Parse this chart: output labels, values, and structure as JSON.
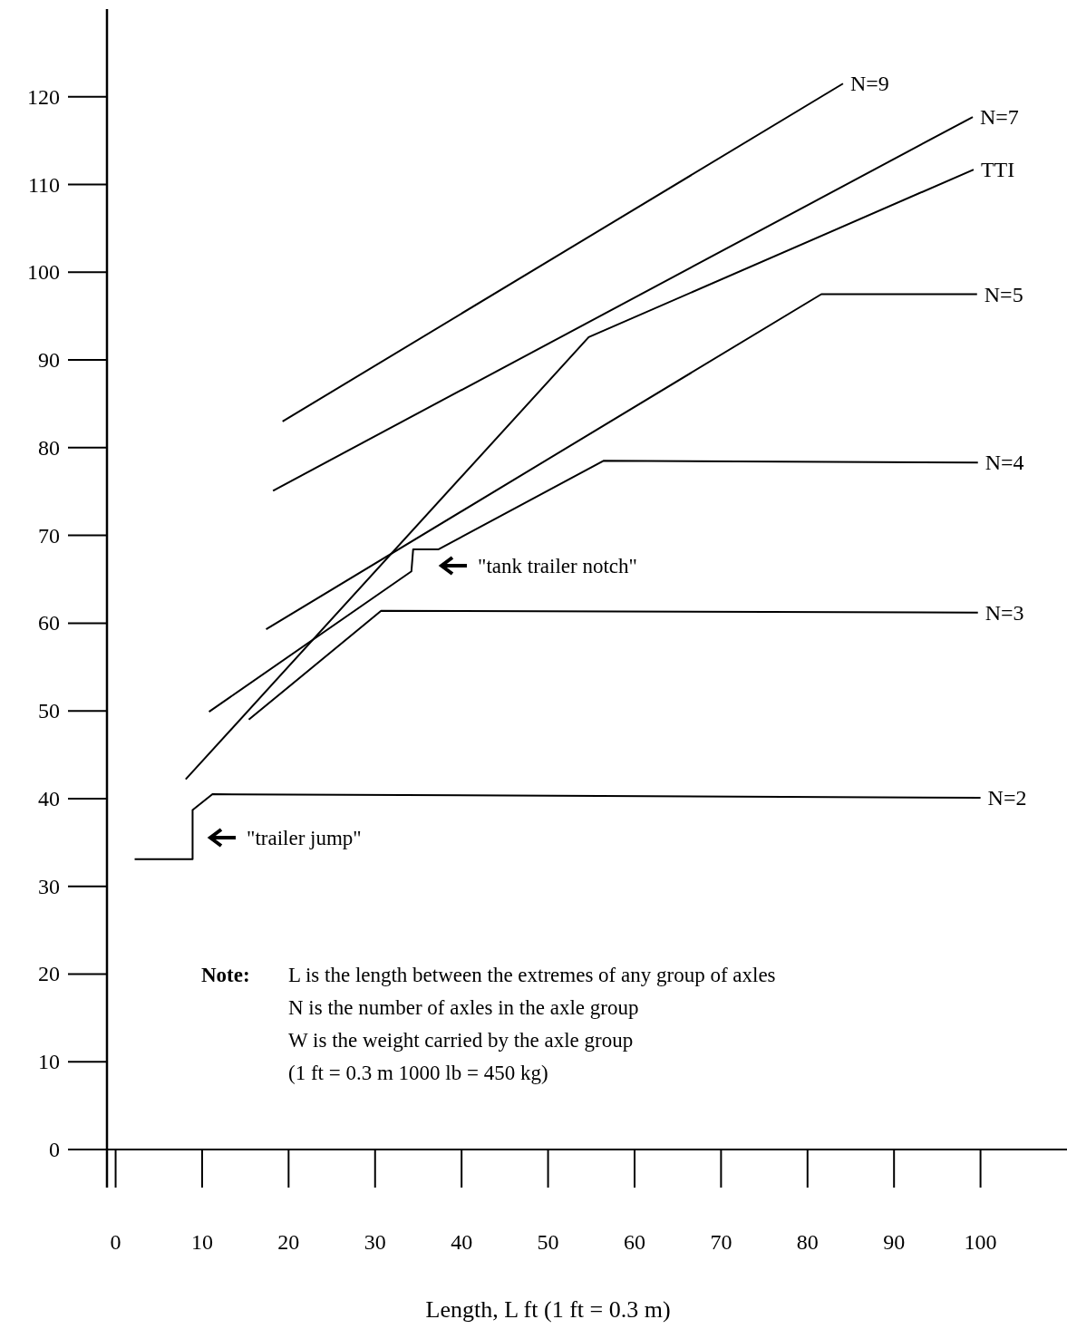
{
  "chart_data": {
    "type": "line",
    "xlabel": "Length, L ft (1 ft = 0.3 m)",
    "xlim": [
      -1,
      110
    ],
    "ylim": [
      0,
      130
    ],
    "xticks": [
      0,
      10,
      20,
      30,
      40,
      50,
      60,
      70,
      80,
      90,
      100
    ],
    "yticks": [
      0,
      10,
      20,
      30,
      40,
      50,
      60,
      70,
      80,
      90,
      100,
      110,
      120
    ],
    "grid": false,
    "marker": "none",
    "line_style": "solid",
    "series": [
      {
        "name": "N=9",
        "color": "#000000",
        "x": [
          19.3,
          84.1
        ],
        "values": [
          83,
          121.5
        ]
      },
      {
        "name": "N=7",
        "color": "#000000",
        "x": [
          18.2,
          99.1
        ],
        "values": [
          75.1,
          117.7
        ]
      },
      {
        "name": "TTI",
        "color": "#000000",
        "x": [
          8.1,
          54.7,
          99.2
        ],
        "values": [
          42.2,
          92.6,
          111.7
        ]
      },
      {
        "name": "N=5",
        "color": "#000000",
        "x": [
          17.4,
          81.6,
          99.6
        ],
        "values": [
          59.3,
          97.5,
          97.5
        ]
      },
      {
        "name": "N=4",
        "color": "#000000",
        "x": [
          10.8,
          34.2,
          34.4,
          37.3,
          56.4,
          99.7
        ],
        "values": [
          49.9,
          65.9,
          68.4,
          68.4,
          78.5,
          78.3
        ]
      },
      {
        "name": "N=3",
        "color": "#000000",
        "x": [
          15.4,
          30.7,
          99.7
        ],
        "values": [
          49,
          61.4,
          61.2
        ]
      },
      {
        "name": "N=2",
        "color": "#000000",
        "x": [
          2.2,
          8.9,
          8.9,
          11.2,
          100
        ],
        "values": [
          33.1,
          33.1,
          38.7,
          40.5,
          40.1
        ]
      }
    ],
    "annotations": [
      "\"tank trailer notch\"",
      "\"trailer jump\"",
      "Note:",
      "L is the length between the extremes of any group of axles",
      "N is the number of axles in the axle group",
      "W is the weight carried by the axle group",
      "(1 ft = 0.3 m 1000 lb = 450 kg)"
    ]
  }
}
